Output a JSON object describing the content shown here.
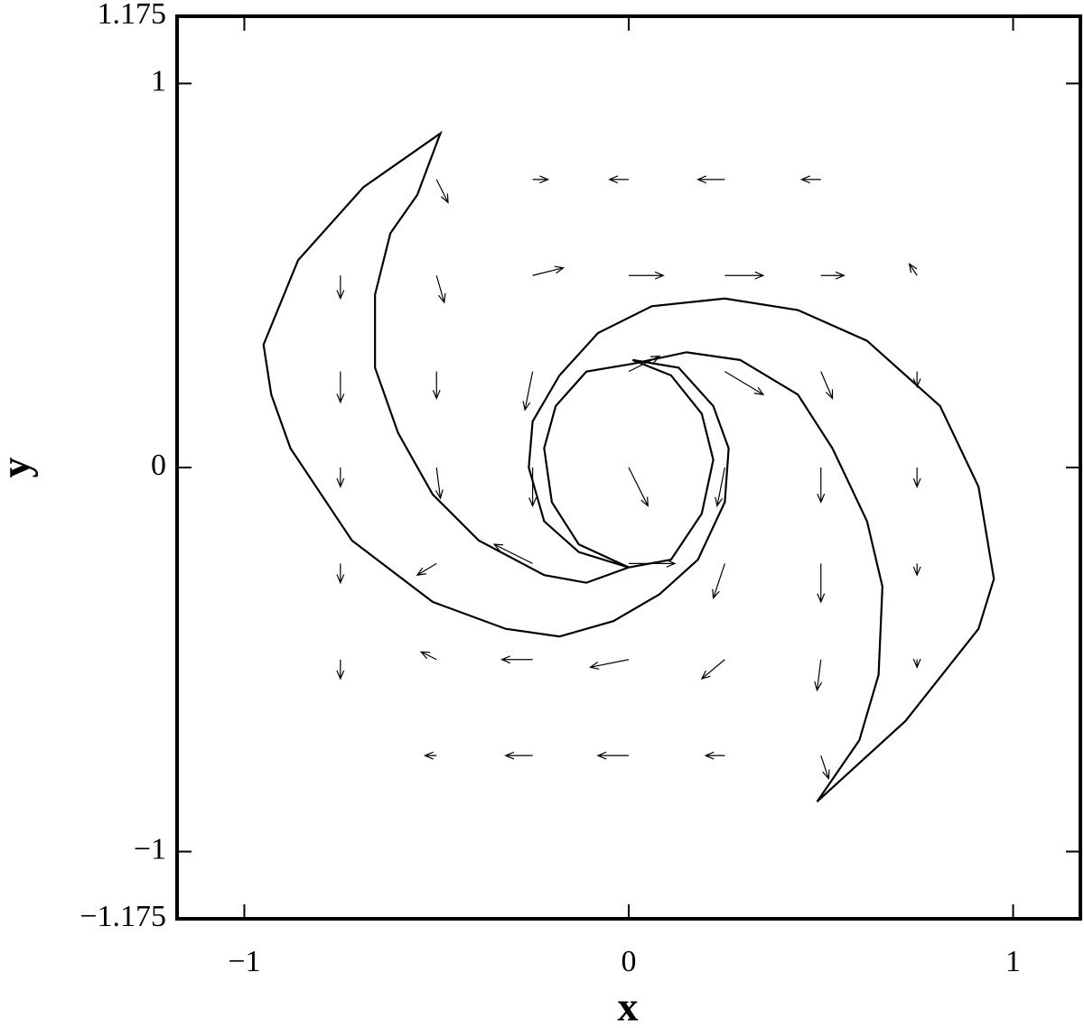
{
  "chart_data": {
    "type": "quiver",
    "xlabel": "x",
    "ylabel": "y",
    "xlim": [
      -1.175,
      1.175
    ],
    "ylim": [
      -1.175,
      1.175
    ],
    "xticks": [
      {
        "value": -1,
        "label": "−1"
      },
      0,
      1
    ],
    "yticks": [
      {
        "value": -1.175,
        "label": "−1.175"
      },
      {
        "value": -1,
        "label": "−1"
      },
      0,
      1,
      1.175
    ],
    "color": "#000000",
    "x": [
      -0.5,
      -0.25,
      0,
      0.25,
      0.5,
      -0.75,
      -0.5,
      -0.25,
      0,
      0.25,
      0.5,
      0.75,
      -0.75,
      -0.5,
      -0.25,
      0,
      0.25,
      0.5,
      0.75,
      -0.75,
      -0.5,
      -0.25,
      0,
      0.25,
      0.5,
      0.75,
      -0.75,
      -0.5,
      -0.25,
      0,
      0.25,
      0.5,
      0.75,
      -0.75,
      -0.5,
      -0.25,
      0,
      0.25,
      0.5,
      0.75,
      -0.5,
      -0.25,
      0,
      0.25,
      0.5
    ],
    "y": [
      0.75,
      0.75,
      0.75,
      0.75,
      0.75,
      0.5,
      0.5,
      0.5,
      0.5,
      0.5,
      0.5,
      0.5,
      0.25,
      0.25,
      0.25,
      0.25,
      0.25,
      0.25,
      0.25,
      0,
      0,
      0,
      0,
      0,
      0,
      0,
      -0.25,
      -0.25,
      -0.25,
      -0.25,
      -0.25,
      -0.25,
      -0.25,
      -0.5,
      -0.5,
      -0.5,
      -0.5,
      -0.5,
      -0.5,
      -0.5,
      -0.75,
      -0.75,
      -0.75,
      -0.75,
      -0.75
    ],
    "u": [
      0.03,
      0.04,
      -0.05,
      -0.07,
      -0.05,
      0,
      0.02,
      0.08,
      0.09,
      0.1,
      0.06,
      -0.02,
      0,
      0,
      -0.02,
      0.08,
      0.1,
      0.03,
      0,
      0,
      0.01,
      0,
      0.05,
      -0.02,
      0,
      0,
      0,
      -0.05,
      -0.1,
      0.12,
      -0.03,
      0,
      0,
      0,
      -0.04,
      -0.08,
      -0.1,
      -0.06,
      -0.01,
      0,
      -0.03,
      -0.07,
      -0.08,
      -0.05,
      0.02
    ],
    "v": [
      -0.06,
      0,
      0,
      0,
      0,
      -0.06,
      -0.07,
      0.02,
      0,
      0,
      0,
      0.03,
      -0.08,
      -0.07,
      -0.1,
      0.04,
      -0.06,
      -0.07,
      -0.04,
      -0.05,
      -0.08,
      -0.1,
      -0.1,
      -0.1,
      -0.09,
      -0.05,
      -0.05,
      -0.03,
      0.05,
      0,
      -0.09,
      -0.1,
      -0.03,
      -0.05,
      0.02,
      0,
      -0.02,
      -0.05,
      -0.08,
      -0.02,
      0,
      0,
      0,
      0,
      -0.06
    ],
    "contours": [
      {
        "x": [
          -0.49,
          -0.69,
          -0.86,
          -0.95,
          -0.93,
          -0.88,
          -0.72,
          -0.51,
          -0.32,
          -0.18,
          -0.04,
          0.08,
          0.18,
          0.25,
          0.26,
          0.22,
          0.13,
          0.01,
          0.11,
          0.19,
          0.22,
          0.19,
          0.11,
          0,
          -0.11,
          -0.22,
          -0.39,
          -0.51,
          -0.6,
          -0.66,
          -0.66,
          -0.62,
          -0.55
        ],
        "y": [
          0.87,
          0.73,
          0.54,
          0.32,
          0.19,
          0.05,
          -0.19,
          -0.35,
          -0.42,
          -0.44,
          -0.4,
          -0.33,
          -0.24,
          -0.09,
          0.05,
          0.16,
          0.26,
          0.28,
          0.24,
          0.14,
          0.02,
          -0.12,
          -0.24,
          -0.26,
          -0.3,
          -0.28,
          -0.19,
          -0.07,
          0.09,
          0.26,
          0.45,
          0.61,
          0.71
        ]
      },
      {
        "x": [
          0.49,
          0.72,
          0.91,
          0.95,
          0.91,
          0.81,
          0.62,
          0.44,
          0.25,
          0.06,
          -0.08,
          -0.18,
          -0.25,
          -0.26,
          -0.22,
          -0.13,
          0,
          -0.13,
          -0.2,
          -0.22,
          -0.19,
          -0.11,
          0.01,
          0.15,
          0.29,
          0.44,
          0.53,
          0.62,
          0.66,
          0.65,
          0.6
        ],
        "y": [
          -0.87,
          -0.66,
          -0.42,
          -0.29,
          -0.05,
          0.16,
          0.33,
          0.41,
          0.44,
          0.42,
          0.35,
          0.24,
          0.12,
          0,
          -0.14,
          -0.22,
          -0.26,
          -0.2,
          -0.09,
          0.05,
          0.16,
          0.25,
          0.27,
          0.3,
          0.28,
          0.19,
          0.05,
          -0.14,
          -0.31,
          -0.54,
          -0.71
        ]
      }
    ]
  }
}
